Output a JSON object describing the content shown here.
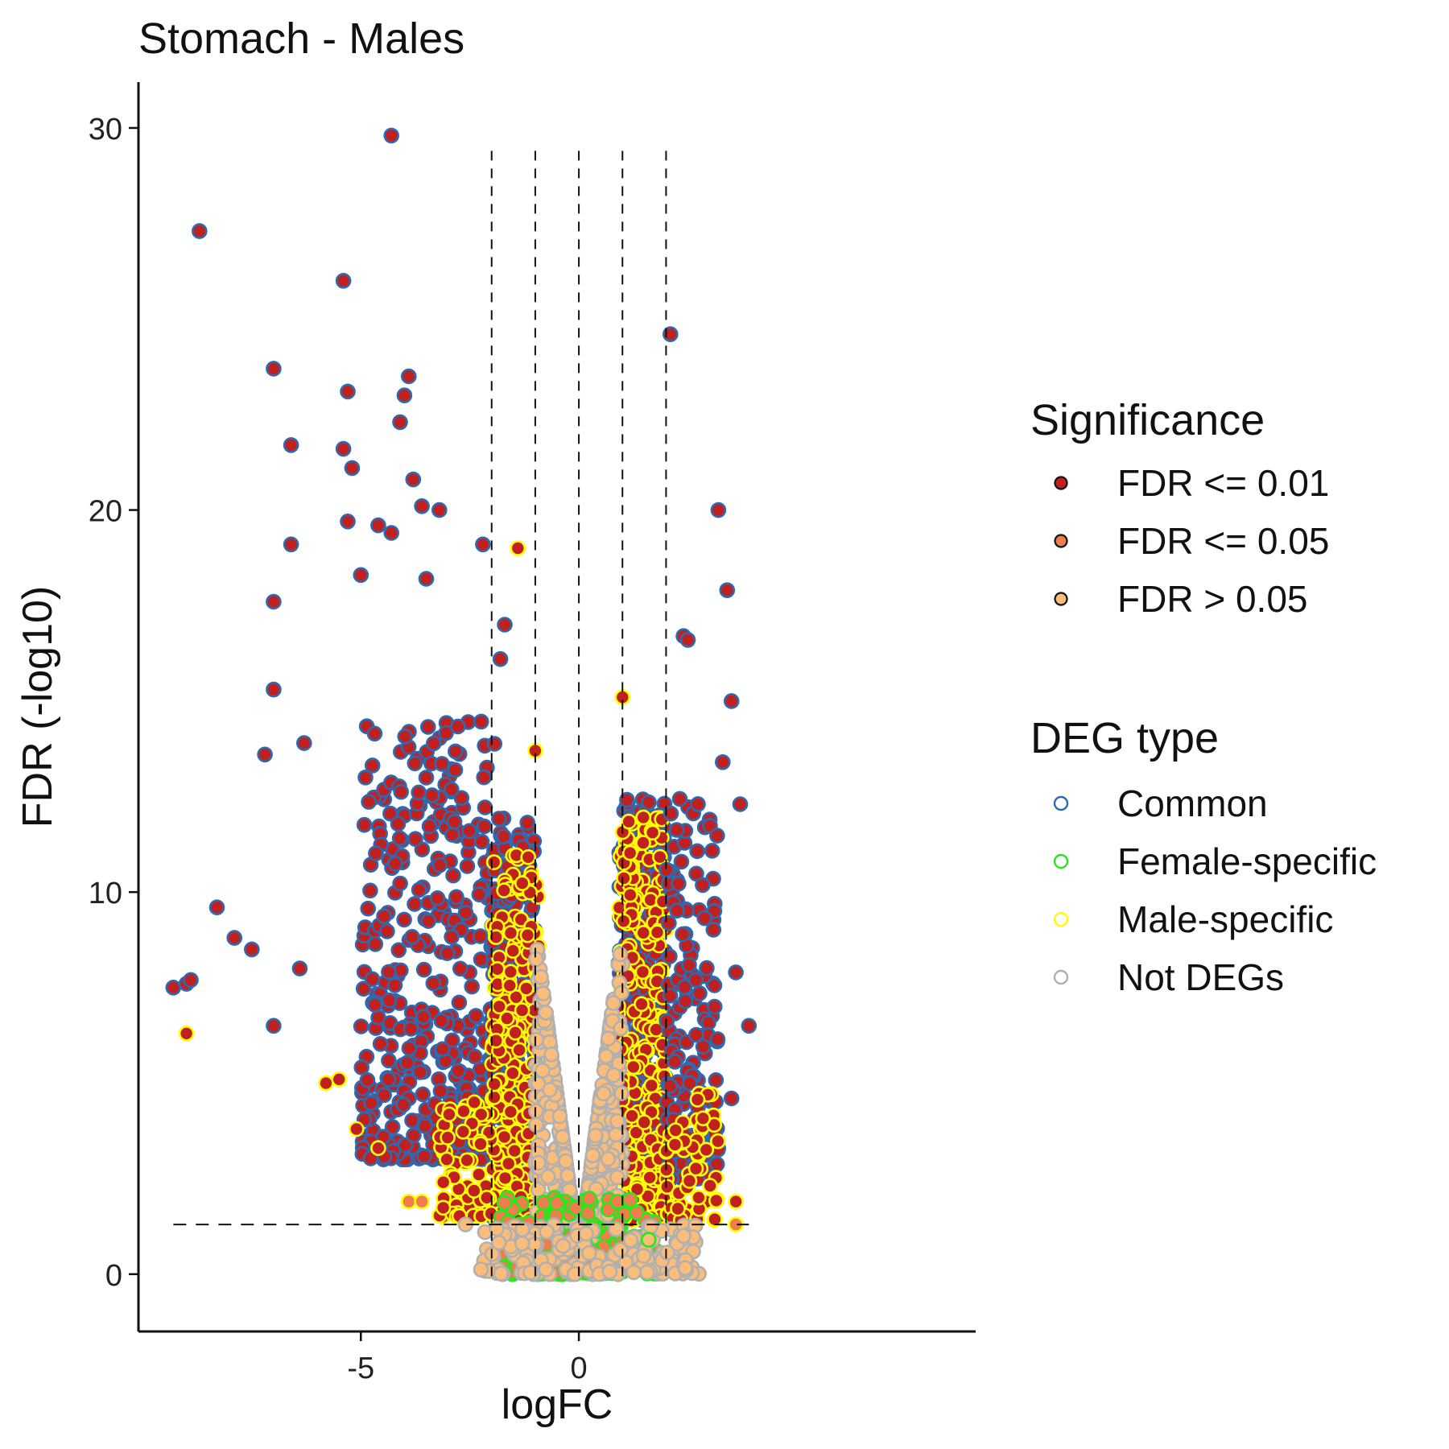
{
  "chart_data": {
    "type": "scatter",
    "title": "Stomach - Males",
    "xlabel": "logFC",
    "ylabel": "FDR (-log10)",
    "xlim": [
      -10.1,
      9.1
    ],
    "ylim": [
      -1.5,
      31.2
    ],
    "xticks": [
      -5,
      0
    ],
    "xtick_labels": [
      "-5",
      "0"
    ],
    "yticks": [
      0,
      10,
      20,
      30
    ],
    "ytick_labels": [
      "0",
      "10",
      "20",
      "30"
    ],
    "vlines": [
      -2,
      -1,
      0,
      1,
      2
    ],
    "hline": 1.3,
    "legend_position": "right",
    "legend": {
      "significance": {
        "title": "Significance",
        "items": [
          {
            "label": "FDR <= 0.01",
            "fill": "#c0201e"
          },
          {
            "label": "FDR <= 0.05",
            "fill": "#f07d4d"
          },
          {
            "label": "FDR > 0.05",
            "fill": "#fbbd79"
          }
        ]
      },
      "deg_type": {
        "title": "DEG type",
        "items": [
          {
            "label": "Common",
            "stroke": "#2e6ab1"
          },
          {
            "label": "Female-specific",
            "stroke": "#27e81d"
          },
          {
            "label": "Male-specific",
            "stroke": "#ffff00"
          },
          {
            "label": "Not DEGs",
            "stroke": "#b0b0b0"
          }
        ]
      }
    },
    "outlier_points": [
      {
        "x": -4.3,
        "y": 29.8,
        "sig": "FDR <= 0.01",
        "deg": "Common"
      },
      {
        "x": -8.7,
        "y": 27.3,
        "sig": "FDR <= 0.01",
        "deg": "Common"
      },
      {
        "x": -5.4,
        "y": 26.0,
        "sig": "FDR <= 0.01",
        "deg": "Common"
      },
      {
        "x": 2.1,
        "y": 24.6,
        "sig": "FDR <= 0.01",
        "deg": "Common"
      },
      {
        "x": -7.0,
        "y": 23.7,
        "sig": "FDR <= 0.01",
        "deg": "Common"
      },
      {
        "x": -3.9,
        "y": 23.5,
        "sig": "FDR <= 0.01",
        "deg": "Common"
      },
      {
        "x": -5.3,
        "y": 23.1,
        "sig": "FDR <= 0.01",
        "deg": "Common"
      },
      {
        "x": -4.0,
        "y": 23.0,
        "sig": "FDR <= 0.01",
        "deg": "Common"
      },
      {
        "x": -4.1,
        "y": 22.3,
        "sig": "FDR <= 0.01",
        "deg": "Common"
      },
      {
        "x": -6.6,
        "y": 21.7,
        "sig": "FDR <= 0.01",
        "deg": "Common"
      },
      {
        "x": -5.4,
        "y": 21.6,
        "sig": "FDR <= 0.01",
        "deg": "Common"
      },
      {
        "x": -5.2,
        "y": 21.1,
        "sig": "FDR <= 0.01",
        "deg": "Common"
      },
      {
        "x": -3.8,
        "y": 20.8,
        "sig": "FDR <= 0.01",
        "deg": "Common"
      },
      {
        "x": -3.6,
        "y": 20.1,
        "sig": "FDR <= 0.01",
        "deg": "Common"
      },
      {
        "x": -3.2,
        "y": 20.0,
        "sig": "FDR <= 0.01",
        "deg": "Common"
      },
      {
        "x": 3.2,
        "y": 20.0,
        "sig": "FDR <= 0.01",
        "deg": "Common"
      },
      {
        "x": -5.3,
        "y": 19.7,
        "sig": "FDR <= 0.01",
        "deg": "Common"
      },
      {
        "x": -4.6,
        "y": 19.6,
        "sig": "FDR <= 0.01",
        "deg": "Common"
      },
      {
        "x": -4.3,
        "y": 19.4,
        "sig": "FDR <= 0.01",
        "deg": "Common"
      },
      {
        "x": -6.6,
        "y": 19.1,
        "sig": "FDR <= 0.01",
        "deg": "Common"
      },
      {
        "x": -2.2,
        "y": 19.1,
        "sig": "FDR <= 0.01",
        "deg": "Common"
      },
      {
        "x": -1.4,
        "y": 19.0,
        "sig": "FDR <= 0.01",
        "deg": "Male-specific"
      },
      {
        "x": -5.0,
        "y": 18.3,
        "sig": "FDR <= 0.01",
        "deg": "Common"
      },
      {
        "x": -3.5,
        "y": 18.2,
        "sig": "FDR <= 0.01",
        "deg": "Common"
      },
      {
        "x": 3.4,
        "y": 17.9,
        "sig": "FDR <= 0.01",
        "deg": "Common"
      },
      {
        "x": -7.0,
        "y": 17.6,
        "sig": "FDR <= 0.01",
        "deg": "Common"
      },
      {
        "x": -1.7,
        "y": 17.0,
        "sig": "FDR <= 0.01",
        "deg": "Common"
      },
      {
        "x": 2.4,
        "y": 16.7,
        "sig": "FDR <= 0.01",
        "deg": "Common"
      },
      {
        "x": 2.5,
        "y": 16.6,
        "sig": "FDR <= 0.01",
        "deg": "Common"
      },
      {
        "x": -1.8,
        "y": 16.1,
        "sig": "FDR <= 0.01",
        "deg": "Common"
      },
      {
        "x": -7.0,
        "y": 15.3,
        "sig": "FDR <= 0.01",
        "deg": "Common"
      },
      {
        "x": 1.0,
        "y": 15.1,
        "sig": "FDR <= 0.01",
        "deg": "Male-specific"
      },
      {
        "x": 3.5,
        "y": 15.0,
        "sig": "FDR <= 0.01",
        "deg": "Common"
      },
      {
        "x": -7.2,
        "y": 13.6,
        "sig": "FDR <= 0.01",
        "deg": "Common"
      },
      {
        "x": -1.0,
        "y": 13.7,
        "sig": "FDR <= 0.01",
        "deg": "Male-specific"
      },
      {
        "x": -6.3,
        "y": 13.9,
        "sig": "FDR <= 0.01",
        "deg": "Common"
      },
      {
        "x": 3.3,
        "y": 13.4,
        "sig": "FDR <= 0.01",
        "deg": "Common"
      },
      {
        "x": 3.7,
        "y": 12.3,
        "sig": "FDR <= 0.01",
        "deg": "Common"
      },
      {
        "x": -8.3,
        "y": 9.6,
        "sig": "FDR <= 0.01",
        "deg": "Common"
      },
      {
        "x": -7.9,
        "y": 8.8,
        "sig": "FDR <= 0.01",
        "deg": "Common"
      },
      {
        "x": -7.5,
        "y": 8.5,
        "sig": "FDR <= 0.01",
        "deg": "Common"
      },
      {
        "x": -6.4,
        "y": 8.0,
        "sig": "FDR <= 0.01",
        "deg": "Common"
      },
      {
        "x": 3.6,
        "y": 7.9,
        "sig": "FDR <= 0.01",
        "deg": "Common"
      },
      {
        "x": -9.3,
        "y": 7.5,
        "sig": "FDR <= 0.01",
        "deg": "Common"
      },
      {
        "x": -9.0,
        "y": 7.6,
        "sig": "FDR <= 0.01",
        "deg": "Common"
      },
      {
        "x": -8.9,
        "y": 7.7,
        "sig": "FDR <= 0.01",
        "deg": "Common"
      },
      {
        "x": -7.0,
        "y": 6.5,
        "sig": "FDR <= 0.01",
        "deg": "Common"
      },
      {
        "x": 3.9,
        "y": 6.5,
        "sig": "FDR <= 0.01",
        "deg": "Common"
      },
      {
        "x": -9.0,
        "y": 6.3,
        "sig": "FDR <= 0.01",
        "deg": "Male-specific"
      },
      {
        "x": 3.5,
        "y": 4.6,
        "sig": "FDR <= 0.01",
        "deg": "Common"
      },
      {
        "x": -5.8,
        "y": 5.0,
        "sig": "FDR <= 0.01",
        "deg": "Male-specific"
      },
      {
        "x": -5.5,
        "y": 5.1,
        "sig": "FDR <= 0.01",
        "deg": "Male-specific"
      },
      {
        "x": -5.1,
        "y": 3.8,
        "sig": "FDR <= 0.01",
        "deg": "Male-specific"
      },
      {
        "x": -4.6,
        "y": 3.3,
        "sig": "FDR <= 0.01",
        "deg": "Male-specific"
      },
      {
        "x": 3.6,
        "y": 1.9,
        "sig": "FDR <= 0.01",
        "deg": "Male-specific"
      },
      {
        "x": 3.6,
        "y": 1.3,
        "sig": "FDR <= 0.05",
        "deg": "Male-specific"
      },
      {
        "x": -3.9,
        "y": 1.9,
        "sig": "FDR <= 0.05",
        "deg": "Male-specific"
      },
      {
        "x": -3.6,
        "y": 1.9,
        "sig": "FDR <= 0.05",
        "deg": "Male-specific"
      },
      {
        "x": -2.6,
        "y": 1.3,
        "sig": "FDR > 0.05",
        "deg": "Not DEGs"
      },
      {
        "x": -1.3,
        "y": 0.8,
        "sig": "FDR > 0.05",
        "deg": "Not DEGs"
      },
      {
        "x": 1.6,
        "y": 0.9,
        "sig": "FDR > 0.05",
        "deg": "Female-specific"
      },
      {
        "x": 2.4,
        "y": 1.0,
        "sig": "FDR > 0.05",
        "deg": "Not DEGs"
      },
      {
        "x": -0.1,
        "y": 0.0,
        "sig": "FDR > 0.05",
        "deg": "Not DEGs"
      }
    ],
    "dense_clusters": [
      {
        "x_range": [
          -5.0,
          -1.9
        ],
        "y_range": [
          3.0,
          14.5
        ],
        "count": 420,
        "sig": "FDR <= 0.01",
        "deg": "Common"
      },
      {
        "x_range": [
          -2.0,
          -1.0
        ],
        "y_range": [
          1.5,
          12.0
        ],
        "count": 380,
        "sig": "FDR <= 0.01",
        "deg": "Common"
      },
      {
        "x_range": [
          -2.0,
          -0.9
        ],
        "y_range": [
          1.4,
          11.0
        ],
        "count": 260,
        "sig": "FDR <= 0.01",
        "deg": "Male-specific"
      },
      {
        "x_range": [
          -3.2,
          -2.0
        ],
        "y_range": [
          1.5,
          4.5
        ],
        "count": 70,
        "sig": "FDR <= 0.01",
        "deg": "Male-specific"
      },
      {
        "x_range": [
          0.9,
          2.0
        ],
        "y_range": [
          1.4,
          12.5
        ],
        "count": 380,
        "sig": "FDR <= 0.01",
        "deg": "Common"
      },
      {
        "x_range": [
          0.9,
          2.0
        ],
        "y_range": [
          1.4,
          12.0
        ],
        "count": 280,
        "sig": "FDR <= 0.01",
        "deg": "Male-specific"
      },
      {
        "x_range": [
          2.0,
          3.2
        ],
        "y_range": [
          2.5,
          12.5
        ],
        "count": 170,
        "sig": "FDR <= 0.01",
        "deg": "Common"
      },
      {
        "x_range": [
          2.0,
          3.2
        ],
        "y_range": [
          1.4,
          5.0
        ],
        "count": 60,
        "sig": "FDR <= 0.01",
        "deg": "Male-specific"
      },
      {
        "x_range": [
          -1.0,
          1.0
        ],
        "y_range": [
          0.0,
          9.0
        ],
        "count": 650,
        "sig": "FDR > 0.05",
        "deg": "Not DEGs"
      },
      {
        "x_range": [
          -1.8,
          1.8
        ],
        "y_range": [
          0.0,
          2.0
        ],
        "count": 170,
        "sig": "FDR <= 0.05",
        "deg": "Female-specific"
      },
      {
        "x_range": [
          -2.3,
          2.8
        ],
        "y_range": [
          0.0,
          1.3
        ],
        "count": 150,
        "sig": "FDR > 0.05",
        "deg": "Not DEGs"
      }
    ]
  }
}
